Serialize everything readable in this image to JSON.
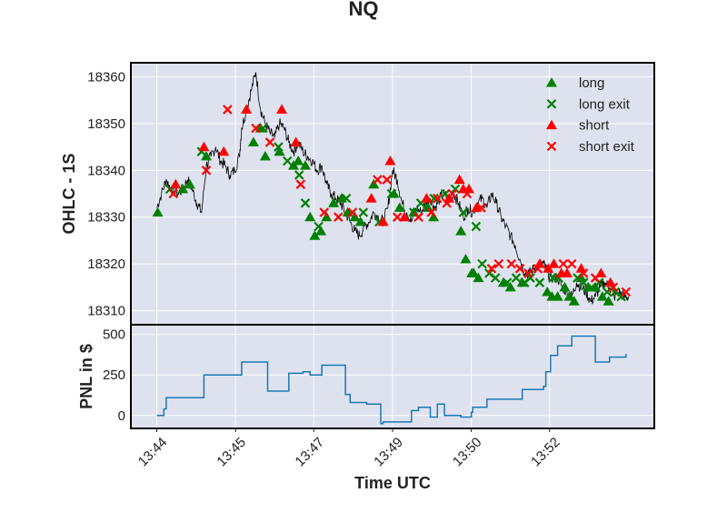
{
  "chart_data": [
    {
      "type": "line",
      "panel": "price",
      "title": "NQ",
      "xlabel": "Time UTC",
      "ylabel": "OHLC - 1S",
      "ylim": [
        18307,
        18363
      ],
      "yticks": [
        18310,
        18320,
        18330,
        18340,
        18350,
        18360
      ],
      "xticks": [
        "13:44",
        "13:45",
        "13:47",
        "13:49",
        "13:50",
        "13:52"
      ],
      "xticks_minutes": [
        0,
        1.67,
        3.33,
        5.0,
        6.67,
        8.33
      ],
      "xlim_minutes": [
        -0.55,
        10.55
      ],
      "grid": true,
      "legend_position": "top-right",
      "colors": {
        "background": "#dde2ee",
        "price": "#000000",
        "long": "#008000",
        "short": "#ff0000"
      },
      "price": {
        "x": [
          0.0,
          0.1,
          0.2,
          0.3,
          0.45,
          0.55,
          0.65,
          0.75,
          0.85,
          0.95,
          1.05,
          1.15,
          1.25,
          1.35,
          1.45,
          1.55,
          1.65,
          1.75,
          1.8,
          1.9,
          2.0,
          2.1,
          2.2,
          2.3,
          2.4,
          2.5,
          2.6,
          2.7,
          2.8,
          2.9,
          3.0,
          3.1,
          3.2,
          3.3,
          3.4,
          3.5,
          3.6,
          3.7,
          3.8,
          3.9,
          4.0,
          4.1,
          4.2,
          4.3,
          4.4,
          4.5,
          4.6,
          4.7,
          4.8,
          4.9,
          5.0,
          5.1,
          5.2,
          5.3,
          5.4,
          5.5,
          5.6,
          5.7,
          5.8,
          5.9,
          6.0,
          6.1,
          6.2,
          6.3,
          6.4,
          6.5,
          6.6,
          6.7,
          6.8,
          6.9,
          7.0,
          7.1,
          7.2,
          7.3,
          7.4,
          7.5,
          7.6,
          7.7,
          7.8,
          7.9,
          8.0,
          8.1,
          8.2,
          8.3,
          8.4,
          8.5,
          8.6,
          8.7,
          8.8,
          8.9,
          9.0,
          9.1,
          9.2,
          9.3,
          9.4,
          9.5,
          9.6,
          9.7,
          9.8,
          9.9,
          10.0
        ],
        "y": [
          18332,
          18335,
          18338,
          18336,
          18335,
          18336,
          18338,
          18336,
          18333,
          18331,
          18341,
          18343,
          18345,
          18342,
          18341,
          18339,
          18340,
          18343,
          18349,
          18353,
          18357,
          18361,
          18353,
          18350,
          18348,
          18347,
          18350,
          18349,
          18346,
          18344,
          18346,
          18344,
          18343,
          18342,
          18340,
          18341,
          18337,
          18335,
          18334,
          18333,
          18331,
          18329,
          18327,
          18326,
          18328,
          18329,
          18331,
          18330,
          18329,
          18332,
          18340,
          18338,
          18333,
          18331,
          18329,
          18332,
          18331,
          18333,
          18334,
          18332,
          18334,
          18335,
          18333,
          18335,
          18333,
          18330,
          18332,
          18331,
          18333,
          18334,
          18332,
          18335,
          18333,
          18330,
          18328,
          18326,
          18324,
          18321,
          18318,
          18318,
          18319,
          18320,
          18320,
          18318,
          18317,
          18317,
          18315,
          18314,
          18313,
          18316,
          18315,
          18314,
          18312,
          18313,
          18315,
          18316,
          18315,
          18313,
          18314,
          18313,
          18313
        ]
      },
      "long_entries": {
        "x": [
          0.02,
          0.55,
          0.7,
          1.05,
          2.05,
          2.2,
          2.3,
          2.6,
          2.9,
          3.0,
          3.15,
          3.25,
          3.35,
          3.48,
          3.6,
          3.75,
          3.92,
          4.05,
          4.2,
          4.32,
          4.6,
          5.03,
          5.15,
          5.45,
          5.75,
          5.87,
          6.45,
          6.55,
          6.68,
          6.72,
          6.82,
          7.35,
          7.5,
          7.75,
          8.28,
          8.38,
          8.5,
          8.65,
          8.75,
          8.85,
          9.0,
          9.15,
          9.3,
          9.45,
          9.58
        ],
        "y": [
          18331,
          18336,
          18337,
          18343,
          18346,
          18349,
          18343,
          18344,
          18341,
          18342,
          18341,
          18330,
          18326,
          18327,
          18330,
          18333,
          18334,
          18331,
          18330,
          18329,
          18337,
          18335,
          18332,
          18331,
          18332,
          18330,
          18327,
          18321,
          18318,
          18318,
          18317,
          18316,
          18315,
          18316,
          18314,
          18313,
          18313,
          18315,
          18313,
          18312,
          18317,
          18315,
          18315,
          18313,
          18312
        ]
      },
      "long_exits": {
        "x": [
          0.28,
          0.95,
          2.25,
          2.58,
          2.77,
          3.02,
          3.15,
          3.43,
          4.02,
          4.38,
          4.72,
          4.98,
          5.45,
          5.6,
          5.88,
          6.12,
          6.33,
          6.5,
          6.77,
          6.9,
          7.05,
          7.18,
          7.43,
          7.62,
          7.8,
          7.92,
          8.12,
          8.4,
          8.52,
          8.92,
          9.05,
          9.22,
          9.38,
          9.55,
          9.72,
          9.85
        ],
        "y": [
          18336,
          18344,
          18349,
          18345,
          18342,
          18339,
          18333,
          18328,
          18334,
          18331,
          18329,
          18335,
          18331,
          18333,
          18334,
          18335,
          18336,
          18331,
          18328,
          18320,
          18318,
          18317,
          18316,
          18317,
          18316,
          18317,
          18316,
          18317,
          18317,
          18317,
          18316,
          18315,
          18316,
          18314,
          18314,
          18313
        ]
      },
      "short_entries": {
        "x": [
          0.4,
          1.0,
          1.42,
          1.9,
          2.65,
          2.95,
          4.55,
          4.8,
          4.95,
          5.25,
          5.72,
          6.2,
          6.42,
          6.5,
          6.62,
          6.78,
          8.12,
          8.3,
          8.42,
          8.58,
          8.7,
          9.0,
          9.42,
          9.62
        ],
        "y": [
          18337,
          18345,
          18344,
          18353,
          18353,
          18346,
          18334,
          18329,
          18342,
          18330,
          18334,
          18334,
          18338,
          18336,
          18336,
          18332,
          18320,
          18319,
          18320,
          18318,
          18318,
          18319,
          18318,
          18316
        ]
      },
      "short_exits": {
        "x": [
          0.35,
          1.05,
          1.5,
          2.1,
          2.4,
          3.05,
          3.55,
          3.85,
          4.15,
          4.68,
          4.88,
          5.1,
          5.55,
          5.82,
          5.95,
          6.15,
          6.27,
          6.58,
          6.88,
          7.1,
          7.25,
          7.52,
          7.7,
          7.88,
          8.08,
          8.62,
          8.8,
          9.05,
          9.3,
          9.68,
          9.95
        ],
        "y": [
          18335,
          18340,
          18353,
          18349,
          18346,
          18337,
          18331,
          18330,
          18331,
          18338,
          18338,
          18330,
          18330,
          18331,
          18334,
          18333,
          18335,
          18335,
          18332,
          18319,
          18320,
          18320,
          18319,
          18318,
          18319,
          18320,
          18320,
          18318,
          18317,
          18315,
          18314
        ]
      },
      "legend": [
        {
          "label": "long",
          "marker": "triangle",
          "color": "#008000"
        },
        {
          "label": "long exit",
          "marker": "x",
          "color": "#008000"
        },
        {
          "label": "short",
          "marker": "triangle",
          "color": "#ff0000"
        },
        {
          "label": "short exit",
          "marker": "x",
          "color": "#ff0000"
        }
      ]
    },
    {
      "type": "line",
      "panel": "pnl",
      "ylabel": "PNL in $",
      "ylim": [
        -80,
        560
      ],
      "yticks": [
        0,
        250,
        500
      ],
      "color": "#1f77b4",
      "step": true,
      "x": [
        0.0,
        0.1,
        0.15,
        0.2,
        0.7,
        0.9,
        1.0,
        1.35,
        1.8,
        1.88,
        2.1,
        2.35,
        2.45,
        2.67,
        2.8,
        3.1,
        3.25,
        3.5,
        3.95,
        4.0,
        4.1,
        4.3,
        4.4,
        4.45,
        4.75,
        4.8,
        5.2,
        5.4,
        5.55,
        5.8,
        5.95,
        6.1,
        6.3,
        6.45,
        6.67,
        6.7,
        6.9,
        7.0,
        7.25,
        7.5,
        7.75,
        8.2,
        8.25,
        8.35,
        8.5,
        8.8,
        8.9,
        9.1,
        9.3,
        9.6,
        9.7,
        9.95
      ],
      "y": [
        0,
        0,
        40,
        110,
        110,
        110,
        250,
        250,
        330,
        330,
        330,
        150,
        150,
        150,
        260,
        270,
        250,
        310,
        310,
        130,
        80,
        80,
        80,
        70,
        -50,
        -40,
        -40,
        30,
        50,
        -10,
        70,
        0,
        0,
        -10,
        20,
        50,
        50,
        100,
        100,
        100,
        160,
        180,
        270,
        370,
        430,
        490,
        490,
        490,
        330,
        360,
        360,
        380
      ]
    }
  ]
}
